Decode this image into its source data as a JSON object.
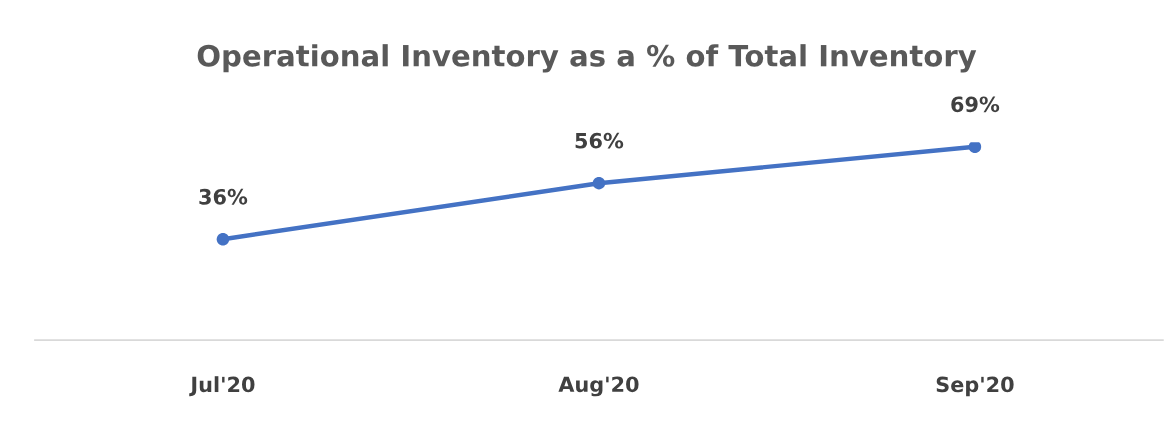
{
  "chart_data": {
    "type": "line",
    "title": "Operational Inventory as a % of Total Inventory",
    "categories": [
      "Jul'20",
      "Aug'20",
      "Sep'20"
    ],
    "series": [
      {
        "color": "#4472c4",
        "values": [
          36,
          56,
          69
        ],
        "value_labels": [
          "36%",
          "56%",
          "69%"
        ]
      }
    ],
    "tick_labels": "x",
    "marker": "circle",
    "line_style": "solid",
    "grid": false,
    "legend": false
  }
}
